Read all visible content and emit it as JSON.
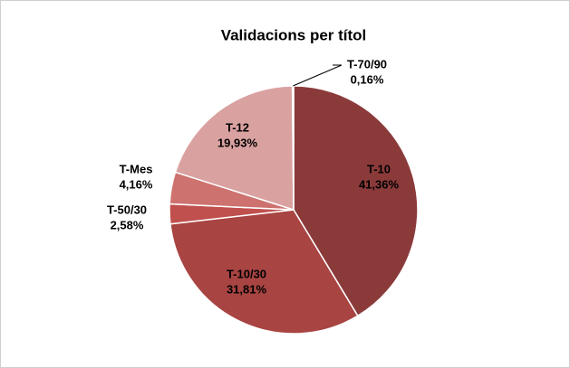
{
  "chart_data": {
    "type": "pie",
    "title": "Validacions per títol",
    "categories": [
      "T-10",
      "T-10/30",
      "T-50/30",
      "T-Mes",
      "T-12",
      "T-70/90"
    ],
    "values": [
      41.36,
      31.81,
      2.58,
      4.16,
      19.93,
      0.16
    ],
    "value_labels": [
      "41,36%",
      "31,81%",
      "2,58%",
      "4,16%",
      "19,93%",
      "0,16%"
    ],
    "colors": [
      "#8b3a3a",
      "#a84442",
      "#c0504d",
      "#cd726f",
      "#d9a1a0",
      "#e8c8c8"
    ]
  }
}
